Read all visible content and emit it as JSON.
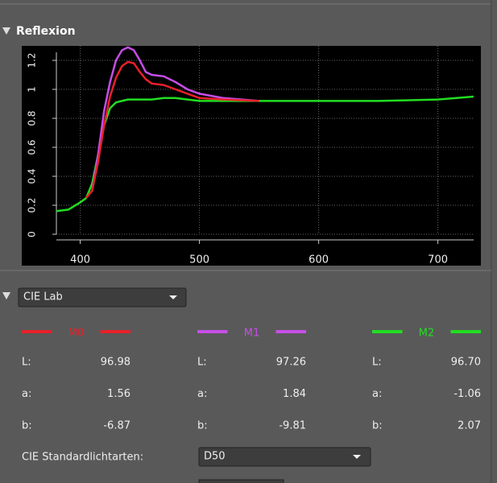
{
  "panel_title": "Reflexion",
  "chart_data": {
    "type": "line",
    "x": [
      380,
      390,
      400,
      405,
      410,
      415,
      420,
      425,
      430,
      435,
      440,
      445,
      450,
      455,
      460,
      470,
      480,
      490,
      500,
      520,
      550,
      600,
      650,
      700,
      730
    ],
    "series": [
      {
        "name": "M0",
        "color": "#e8202a",
        "values": [
          null,
          null,
          null,
          0.25,
          0.3,
          0.5,
          0.75,
          0.95,
          1.08,
          1.16,
          1.19,
          1.18,
          1.12,
          1.07,
          1.04,
          1.03,
          1.0,
          0.97,
          0.94,
          0.93,
          0.92,
          null,
          null,
          null,
          null
        ]
      },
      {
        "name": "M1",
        "color": "#c64ee6",
        "values": [
          null,
          null,
          null,
          null,
          0.3,
          0.55,
          0.85,
          1.05,
          1.2,
          1.27,
          1.29,
          1.27,
          1.2,
          1.12,
          1.1,
          1.09,
          1.05,
          1.0,
          0.97,
          0.94,
          0.92,
          null,
          null,
          null,
          null
        ]
      },
      {
        "name": "M2",
        "color": "#22dd22",
        "values": [
          0.16,
          0.17,
          0.22,
          0.25,
          0.35,
          0.55,
          0.75,
          0.87,
          0.91,
          0.92,
          0.93,
          0.93,
          0.93,
          0.93,
          0.93,
          0.94,
          0.94,
          0.93,
          0.92,
          0.92,
          0.92,
          0.92,
          0.92,
          0.93,
          0.95
        ]
      }
    ],
    "xlim": [
      380,
      730
    ],
    "ylim": [
      0,
      1.3
    ],
    "xticks": [
      400,
      500,
      600,
      700
    ],
    "yticks": [
      0,
      0.2,
      0.4,
      0.6,
      0.8,
      1,
      1.2
    ],
    "grid": true
  },
  "color_space": {
    "selected": "CIE Lab"
  },
  "lab_labels": [
    "L:",
    "a:",
    "b:"
  ],
  "lab_values": [
    [
      "96.98",
      "1.56",
      "-6.87"
    ],
    [
      "97.26",
      "1.84",
      "-9.81"
    ],
    [
      "96.70",
      "-1.06",
      "2.07"
    ]
  ],
  "illuminant": {
    "label": "CIE Standardlichtarten:",
    "selected": "D50"
  }
}
